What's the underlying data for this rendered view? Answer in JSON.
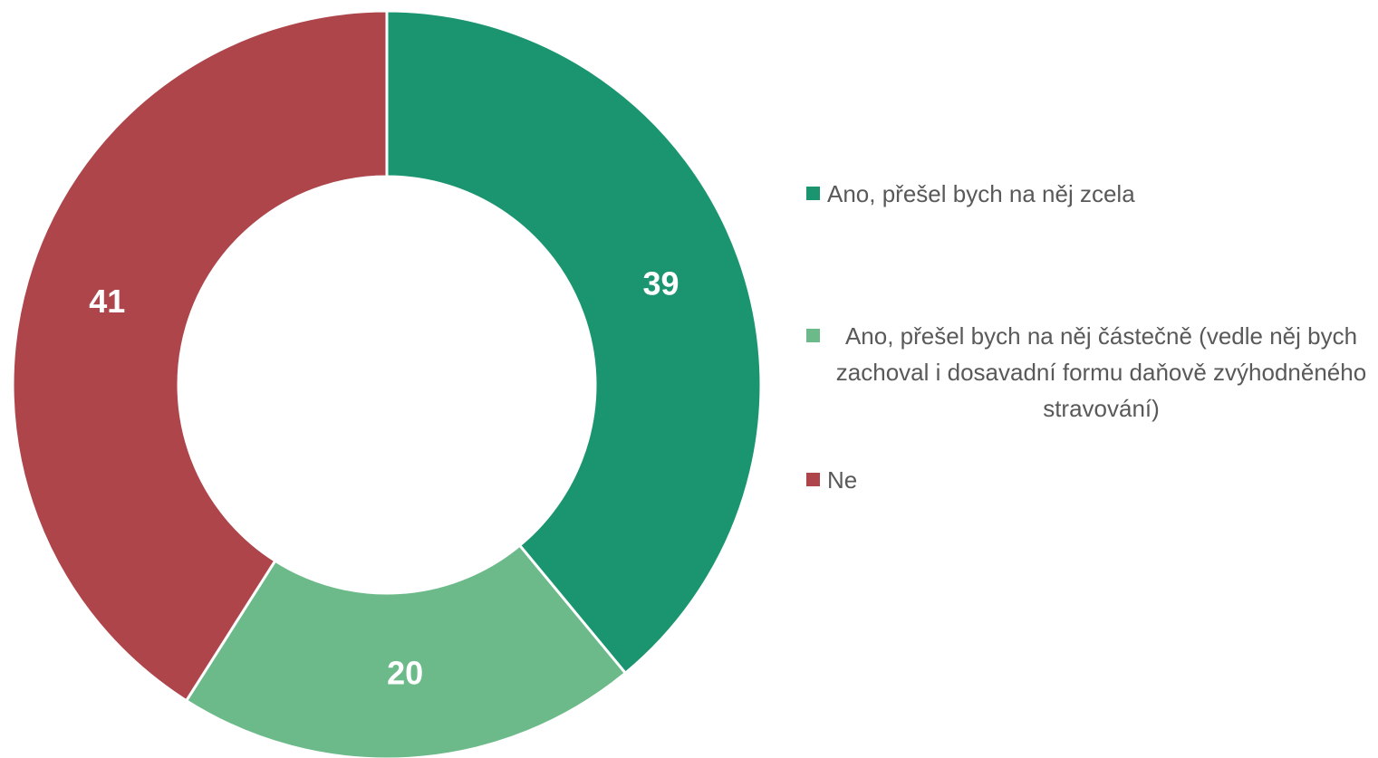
{
  "chart_data": {
    "type": "donut",
    "categories": [
      "Ano, přešel bych na něj zcela",
      "Ano, přešel bych na něj částečně (vedle něj bych zachoval i dosavadní formu daňově zvýhodněného stravování)",
      "Ne"
    ],
    "values": [
      39,
      20,
      41
    ],
    "colors": [
      "#1b9570",
      "#6cba8a",
      "#ae454b"
    ],
    "legend": "right"
  }
}
